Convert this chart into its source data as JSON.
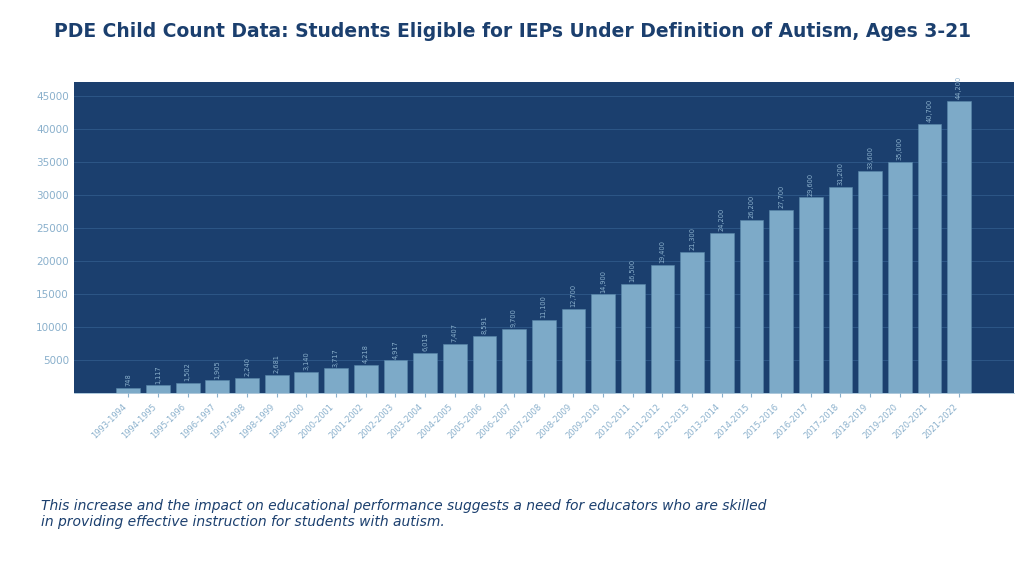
{
  "title": "PDE Child Count Data: Students Eligible for IEPs Under Definition of Autism, Ages 3-21",
  "subtitle": "This increase and the impact on educational performance suggests a need for educators who are skilled\nin providing effective instruction for students with autism.",
  "categories": [
    "1993-1994",
    "1994-1995",
    "1995-1996",
    "1996-1997",
    "1997-1998",
    "1998-1999",
    "1999-2000",
    "2000-2001",
    "2001-2002",
    "2002-2003",
    "2003-2004",
    "2004-2005",
    "2005-2006",
    "2006-2007",
    "2007-2008",
    "2008-2009",
    "2009-2010",
    "2010-2011",
    "2011-2012",
    "2012-2013",
    "2013-2014",
    "2014-2015",
    "2015-2016",
    "2016-2017",
    "2017-2018",
    "2018-2019",
    "2019-2020",
    "2020-2021",
    "2021-2022"
  ],
  "values": [
    748,
    1117,
    1502,
    1905,
    2240,
    2681,
    3140,
    3717,
    4218,
    4917,
    6013,
    7407,
    8591,
    9700,
    11100,
    12700,
    14900,
    16500,
    19400,
    21300,
    24200,
    26200,
    27700,
    29600,
    31200,
    33600,
    35000,
    40700,
    44200
  ],
  "bar_color": "#7daac8",
  "bar_edge_color": "#5a88aa",
  "background_color": "#1b3f6e",
  "title_bg_color": "#ffffff",
  "title_color": "#1b3f6e",
  "subtitle_bg_color": "#ffffff",
  "subtitle_color": "#1b3f6e",
  "grid_color": "#2e5888",
  "tick_color": "#8ab0cc",
  "value_label_color": "#8ab0cc",
  "ylim": [
    0,
    47000
  ],
  "yticks": [
    0,
    5000,
    10000,
    15000,
    20000,
    25000,
    30000,
    35000,
    40000,
    45000
  ],
  "ytick_labels": [
    "",
    "5000",
    "10000",
    "15000",
    "20000",
    "25000",
    "30000",
    "35000",
    "40000",
    "45000"
  ]
}
